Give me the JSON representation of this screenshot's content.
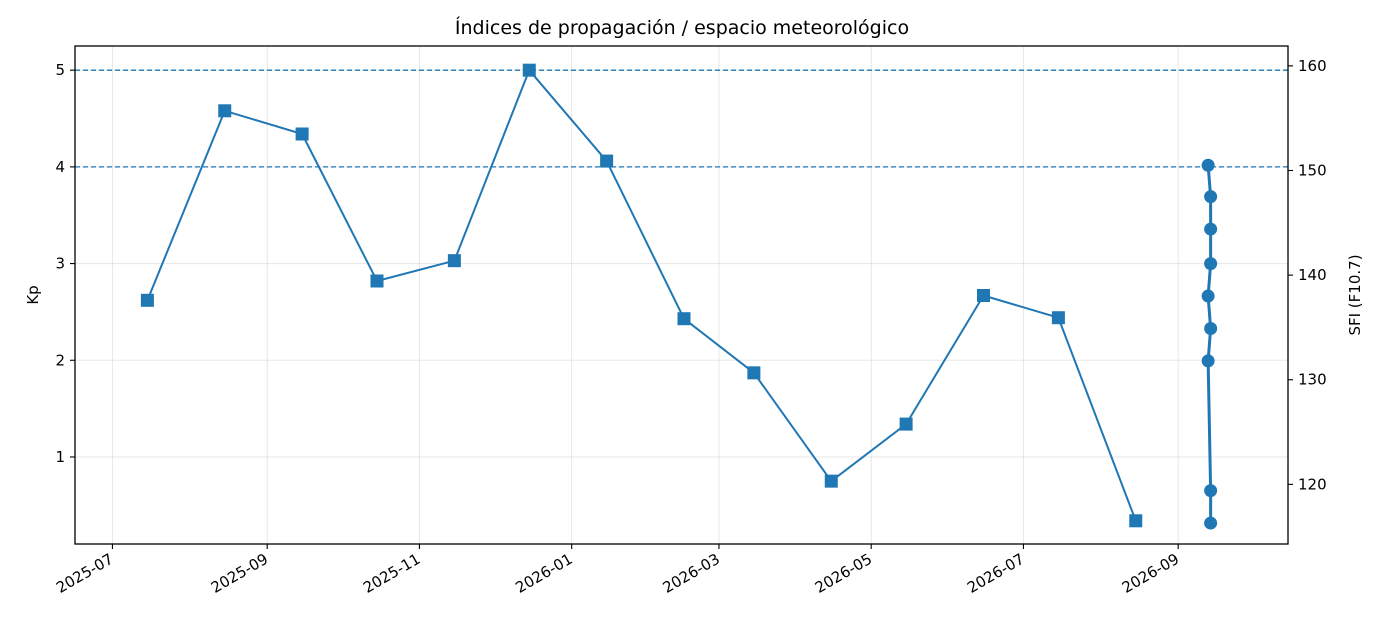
{
  "chart_data": {
    "type": "line",
    "title": "Índices de propagación / espacio meteorológico",
    "ylabel": "Kp",
    "y2label": "SFI (F10.7)",
    "xlabel": "",
    "x_range": [
      "2025-06-16",
      "2026-10-15"
    ],
    "xtick_labels": [
      "2025-07",
      "2025-09",
      "2025-11",
      "2026-01",
      "2026-03",
      "2026-05",
      "2026-07",
      "2026-09"
    ],
    "xtick_dates": [
      "2025-07-01",
      "2025-09-01",
      "2025-11-01",
      "2026-01-01",
      "2026-03-01",
      "2026-05-01",
      "2026-07-01",
      "2026-09-01"
    ],
    "ylim": [
      0.1,
      5.25
    ],
    "yticks": [
      1,
      2,
      3,
      4,
      5
    ],
    "y2lim": [
      114.3,
      161.9
    ],
    "y2ticks": [
      120,
      130,
      140,
      150,
      160
    ],
    "grid": true,
    "hlines": [
      4,
      5
    ],
    "series": [
      {
        "axis": "left",
        "marker": "square",
        "color": "#1f77b4",
        "x": [
          "2025-07-15",
          "2025-08-15",
          "2025-09-15",
          "2025-10-15",
          "2025-11-15",
          "2025-12-15",
          "2026-01-15",
          "2026-02-15",
          "2026-03-15",
          "2026-04-15",
          "2026-05-15",
          "2026-06-15",
          "2026-07-15",
          "2026-08-15"
        ],
        "values": [
          2.62,
          4.58,
          4.34,
          2.82,
          3.03,
          5.0,
          4.06,
          2.43,
          1.87,
          0.75,
          1.34,
          2.67,
          2.44,
          0.34
        ]
      },
      {
        "axis": "right",
        "marker": "circle",
        "color": "#1f77b4",
        "x": [
          "2026-09-13",
          "2026-09-14",
          "2026-09-14",
          "2026-09-14",
          "2026-09-13",
          "2026-09-14",
          "2026-09-13",
          "2026-09-14",
          "2026-09-14"
        ],
        "values": [
          150.5,
          147.5,
          144.4,
          141.1,
          138.0,
          134.9,
          131.8,
          119.4,
          116.3
        ]
      }
    ]
  }
}
